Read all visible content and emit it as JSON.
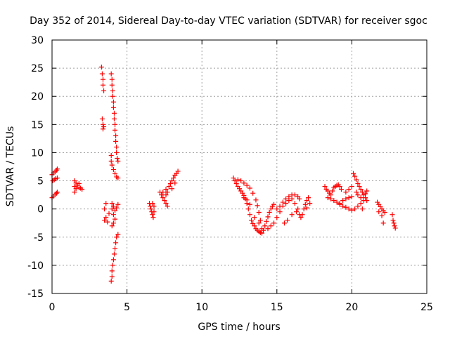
{
  "chart_data": {
    "type": "scatter",
    "title": "Day 352 of 2014, Sidereal Day-to-day VTEC variation (SDTVAR) for receiver sgoc",
    "xlabel": "GPS time / hours",
    "ylabel": "SDTVAR / TECUs",
    "xlim": [
      0,
      25
    ],
    "ylim": [
      -15,
      30
    ],
    "xticks": [
      0,
      5,
      10,
      15,
      20,
      25
    ],
    "yticks": [
      -15,
      -10,
      -5,
      0,
      5,
      10,
      15,
      20,
      25,
      30
    ],
    "xtick_labels": [
      "0",
      "5",
      "10",
      "15",
      "20",
      "25"
    ],
    "ytick_labels": [
      "-15",
      "-10",
      "-5",
      "0",
      "5",
      "10",
      "15",
      "20",
      "25",
      "30"
    ],
    "grid": true,
    "marker": "+",
    "marker_color": "#ff0000",
    "series": [
      {
        "name": "SDTVAR",
        "points": [
          [
            0.0,
            6.1
          ],
          [
            0.1,
            6.4
          ],
          [
            0.2,
            6.6
          ],
          [
            0.3,
            6.9
          ],
          [
            0.35,
            7.1
          ],
          [
            0.05,
            5.0
          ],
          [
            0.15,
            5.2
          ],
          [
            0.25,
            5.4
          ],
          [
            0.35,
            5.5
          ],
          [
            0.0,
            2.0
          ],
          [
            0.1,
            2.3
          ],
          [
            0.2,
            2.6
          ],
          [
            0.3,
            2.8
          ],
          [
            0.35,
            3.0
          ],
          [
            1.5,
            3.0
          ],
          [
            1.5,
            4.0
          ],
          [
            1.5,
            5.0
          ],
          [
            1.6,
            4.6
          ],
          [
            1.7,
            4.2
          ],
          [
            1.8,
            3.8
          ],
          [
            1.9,
            3.7
          ],
          [
            2.0,
            3.5
          ],
          [
            1.6,
            3.6
          ],
          [
            1.8,
            4.5
          ],
          [
            3.3,
            25.2
          ],
          [
            3.35,
            24.0
          ],
          [
            3.4,
            23.0
          ],
          [
            3.4,
            22.0
          ],
          [
            3.45,
            21.0
          ],
          [
            3.35,
            16.0
          ],
          [
            3.4,
            15.0
          ],
          [
            3.4,
            14.2
          ],
          [
            3.45,
            14.6
          ],
          [
            3.5,
            0.0
          ],
          [
            3.6,
            1.0
          ],
          [
            3.6,
            -1.5
          ],
          [
            3.5,
            -2.0
          ],
          [
            3.7,
            -2.3
          ],
          [
            3.8,
            -0.8
          ],
          [
            3.95,
            24.0
          ],
          [
            4.0,
            23.0
          ],
          [
            4.0,
            22.0
          ],
          [
            4.05,
            21.0
          ],
          [
            4.05,
            20.0
          ],
          [
            4.1,
            19.0
          ],
          [
            4.1,
            18.0
          ],
          [
            4.15,
            17.0
          ],
          [
            4.15,
            16.0
          ],
          [
            4.2,
            15.0
          ],
          [
            4.2,
            14.0
          ],
          [
            4.25,
            13.0
          ],
          [
            4.25,
            12.0
          ],
          [
            4.3,
            11.0
          ],
          [
            4.3,
            10.0
          ],
          [
            4.35,
            9.0
          ],
          [
            4.4,
            8.5
          ],
          [
            3.95,
            9.5
          ],
          [
            3.95,
            8.5
          ],
          [
            4.0,
            7.8
          ],
          [
            4.1,
            7.0
          ],
          [
            4.2,
            6.3
          ],
          [
            4.3,
            5.7
          ],
          [
            4.4,
            5.5
          ],
          [
            4.0,
            1.0
          ],
          [
            4.1,
            0.5
          ],
          [
            4.0,
            0.0
          ],
          [
            4.2,
            -0.3
          ],
          [
            4.3,
            0.2
          ],
          [
            4.4,
            0.8
          ],
          [
            4.1,
            -1.0
          ],
          [
            4.2,
            -1.8
          ],
          [
            4.1,
            -2.5
          ],
          [
            4.0,
            -3.0
          ],
          [
            3.95,
            -12.8
          ],
          [
            4.0,
            -12.0
          ],
          [
            4.0,
            -11.0
          ],
          [
            4.05,
            -10.0
          ],
          [
            4.1,
            -9.0
          ],
          [
            4.15,
            -8.0
          ],
          [
            4.2,
            -7.0
          ],
          [
            4.25,
            -6.0
          ],
          [
            4.3,
            -5.0
          ],
          [
            4.4,
            -4.5
          ],
          [
            6.5,
            1.0
          ],
          [
            6.55,
            0.5
          ],
          [
            6.6,
            0.0
          ],
          [
            6.65,
            -0.5
          ],
          [
            6.7,
            -1.0
          ],
          [
            6.75,
            -1.5
          ],
          [
            6.8,
            -0.5
          ],
          [
            6.8,
            0.5
          ],
          [
            6.7,
            1.0
          ],
          [
            7.2,
            3.0
          ],
          [
            7.3,
            2.5
          ],
          [
            7.4,
            2.0
          ],
          [
            7.5,
            1.5
          ],
          [
            7.6,
            1.0
          ],
          [
            7.7,
            0.5
          ],
          [
            7.4,
            3.0
          ],
          [
            7.6,
            2.5
          ],
          [
            7.7,
            3.0
          ],
          [
            7.6,
            3.5
          ],
          [
            7.8,
            4.0
          ],
          [
            7.9,
            4.5
          ],
          [
            8.0,
            5.0
          ],
          [
            8.1,
            5.5
          ],
          [
            8.2,
            6.0
          ],
          [
            8.3,
            6.3
          ],
          [
            8.4,
            6.7
          ],
          [
            8.0,
            3.6
          ],
          [
            8.2,
            4.6
          ],
          [
            12.1,
            5.5
          ],
          [
            12.2,
            5.0
          ],
          [
            12.3,
            4.5
          ],
          [
            12.4,
            4.0
          ],
          [
            12.5,
            3.6
          ],
          [
            12.6,
            3.2
          ],
          [
            12.7,
            2.8
          ],
          [
            12.8,
            2.4
          ],
          [
            12.9,
            1.8
          ],
          [
            13.0,
            1.0
          ],
          [
            13.1,
            0.0
          ],
          [
            13.2,
            -1.0
          ],
          [
            13.3,
            -2.0
          ],
          [
            13.4,
            -2.6
          ],
          [
            13.5,
            -3.0
          ],
          [
            13.6,
            -3.5
          ],
          [
            13.7,
            -3.8
          ],
          [
            13.8,
            -4.0
          ],
          [
            13.9,
            -4.2
          ],
          [
            14.0,
            -4.3
          ],
          [
            14.1,
            -3.8
          ],
          [
            14.2,
            -3.0
          ],
          [
            14.3,
            -2.2
          ],
          [
            14.4,
            -1.4
          ],
          [
            14.5,
            -0.6
          ],
          [
            14.6,
            0.0
          ],
          [
            14.7,
            0.5
          ],
          [
            14.8,
            0.8
          ],
          [
            12.4,
            5.2
          ],
          [
            12.6,
            5.0
          ],
          [
            12.8,
            4.6
          ],
          [
            13.0,
            4.2
          ],
          [
            13.2,
            3.7
          ],
          [
            13.4,
            2.8
          ],
          [
            13.6,
            1.6
          ],
          [
            13.7,
            0.6
          ],
          [
            13.8,
            -0.6
          ],
          [
            13.9,
            -2.0
          ],
          [
            12.8,
            2.0
          ],
          [
            13.0,
            1.6
          ],
          [
            13.2,
            0.8
          ],
          [
            13.5,
            -1.5
          ],
          [
            13.8,
            -2.5
          ],
          [
            14.0,
            -3.5
          ],
          [
            14.4,
            -3.5
          ],
          [
            14.6,
            -3.0
          ],
          [
            14.8,
            -2.5
          ],
          [
            15.0,
            -1.5
          ],
          [
            15.2,
            -0.5
          ],
          [
            15.4,
            0.5
          ],
          [
            15.6,
            1.0
          ],
          [
            15.8,
            1.5
          ],
          [
            16.0,
            1.8
          ],
          [
            15.0,
            0.0
          ],
          [
            15.2,
            0.5
          ],
          [
            15.4,
            1.2
          ],
          [
            15.6,
            1.8
          ],
          [
            15.8,
            2.2
          ],
          [
            16.0,
            2.5
          ],
          [
            16.2,
            2.5
          ],
          [
            16.4,
            2.2
          ],
          [
            16.5,
            1.8
          ],
          [
            16.2,
            1.0
          ],
          [
            16.4,
            0.0
          ],
          [
            16.5,
            -1.0
          ],
          [
            16.6,
            -1.5
          ],
          [
            16.7,
            -1.0
          ],
          [
            16.8,
            0.0
          ],
          [
            16.9,
            0.8
          ],
          [
            17.0,
            1.5
          ],
          [
            17.1,
            2.0
          ],
          [
            15.5,
            -2.5
          ],
          [
            15.7,
            -2.0
          ],
          [
            16.0,
            -1.0
          ],
          [
            16.3,
            -0.5
          ],
          [
            17.0,
            0.2
          ],
          [
            17.2,
            1.0
          ],
          [
            18.2,
            4.0
          ],
          [
            18.3,
            3.5
          ],
          [
            18.4,
            3.2
          ],
          [
            18.5,
            2.8
          ],
          [
            18.6,
            2.5
          ],
          [
            18.7,
            3.2
          ],
          [
            18.8,
            3.8
          ],
          [
            18.9,
            4.0
          ],
          [
            19.0,
            4.2
          ],
          [
            19.1,
            4.3
          ],
          [
            19.2,
            4.0
          ],
          [
            19.3,
            3.5
          ],
          [
            18.4,
            2.0
          ],
          [
            18.6,
            1.8
          ],
          [
            18.8,
            1.5
          ],
          [
            19.0,
            1.2
          ],
          [
            19.2,
            0.8
          ],
          [
            19.4,
            0.5
          ],
          [
            19.6,
            0.3
          ],
          [
            19.8,
            0.0
          ],
          [
            20.0,
            -0.2
          ],
          [
            20.2,
            0.0
          ],
          [
            19.2,
            1.0
          ],
          [
            19.4,
            1.5
          ],
          [
            19.6,
            1.8
          ],
          [
            19.8,
            2.0
          ],
          [
            20.0,
            2.2
          ],
          [
            19.6,
            3.0
          ],
          [
            19.8,
            3.5
          ],
          [
            20.0,
            4.0
          ],
          [
            20.1,
            6.3
          ],
          [
            20.2,
            5.8
          ],
          [
            20.3,
            5.2
          ],
          [
            20.4,
            4.5
          ],
          [
            20.5,
            4.0
          ],
          [
            20.6,
            3.5
          ],
          [
            20.7,
            3.0
          ],
          [
            20.8,
            2.5
          ],
          [
            20.9,
            2.0
          ],
          [
            21.0,
            1.5
          ],
          [
            20.3,
            3.0
          ],
          [
            20.4,
            2.5
          ],
          [
            20.6,
            2.0
          ],
          [
            20.8,
            1.5
          ],
          [
            20.6,
            1.0
          ],
          [
            20.4,
            0.5
          ],
          [
            20.7,
            0.0
          ],
          [
            20.9,
            2.7
          ],
          [
            21.0,
            3.2
          ],
          [
            21.7,
            1.2
          ],
          [
            21.8,
            0.8
          ],
          [
            21.9,
            0.4
          ],
          [
            22.0,
            0.0
          ],
          [
            22.1,
            -0.3
          ],
          [
            22.2,
            -0.6
          ],
          [
            21.8,
            -0.5
          ],
          [
            22.0,
            -1.2
          ],
          [
            22.1,
            -2.5
          ],
          [
            22.7,
            -1.0
          ],
          [
            22.75,
            -2.0
          ],
          [
            22.8,
            -2.5
          ],
          [
            22.85,
            -3.0
          ],
          [
            22.9,
            -3.4
          ]
        ]
      }
    ]
  }
}
